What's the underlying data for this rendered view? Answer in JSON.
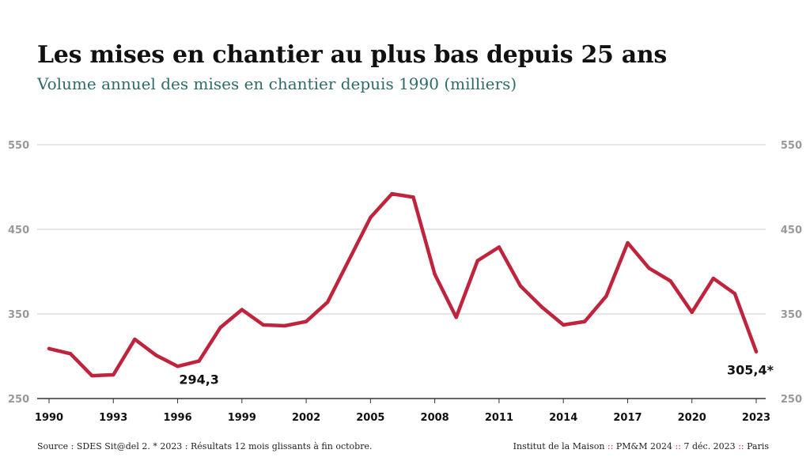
{
  "header": {
    "title": "Les mises en chantier au plus bas depuis 25 ans",
    "subtitle": "Volume annuel des mises en chantier depuis 1990 (milliers)"
  },
  "footer": {
    "source": "Source : SDES Sit@del 2. * 2023 : Résultats 12 mois glissants à fin octobre.",
    "org": "Institut de la Maison",
    "separator": "::",
    "credit": "PM&M 2024",
    "date": "7 déc. 2023",
    "city": "Paris"
  },
  "chart_data": {
    "type": "line",
    "title": "Les mises en chantier au plus bas depuis 25 ans",
    "subtitle": "Volume annuel des mises en chantier depuis 1990 (milliers)",
    "xlabel": "",
    "ylabel": "",
    "x": [
      1990,
      1991,
      1992,
      1993,
      1994,
      1995,
      1996,
      1997,
      1998,
      1999,
      2000,
      2001,
      2002,
      2003,
      2004,
      2005,
      2006,
      2007,
      2008,
      2009,
      2010,
      2011,
      2012,
      2013,
      2014,
      2015,
      2016,
      2017,
      2018,
      2019,
      2020,
      2021,
      2022,
      2023
    ],
    "series": [
      {
        "name": "",
        "values": [
          309,
          303,
          277,
          278,
          320,
          301,
          288,
          294.3,
          334,
          355,
          337,
          336,
          341,
          364,
          414,
          464,
          492,
          488,
          397,
          346,
          413,
          429,
          383,
          358,
          337,
          341,
          371,
          434,
          404,
          389,
          352,
          392,
          374,
          305.4
        ]
      }
    ],
    "xticks": [
      "1990",
      "1993",
      "1996",
      "1999",
      "2002",
      "2005",
      "2008",
      "2011",
      "2014",
      "2017",
      "2020",
      "2023"
    ],
    "yticks": [
      "250",
      "350",
      "450",
      "550"
    ],
    "ylim": [
      250,
      550
    ],
    "xlim": [
      1990,
      2023
    ],
    "grid": true,
    "annotations": [
      {
        "x": 1997,
        "label": "294,3"
      },
      {
        "x": 2023,
        "label": "305,4*"
      }
    ],
    "colors": {
      "line": "#c0243c",
      "grid": "#cccccc",
      "axis": "#333333",
      "tick_label": "#999999",
      "subtitle": "#2f6b6b"
    }
  }
}
